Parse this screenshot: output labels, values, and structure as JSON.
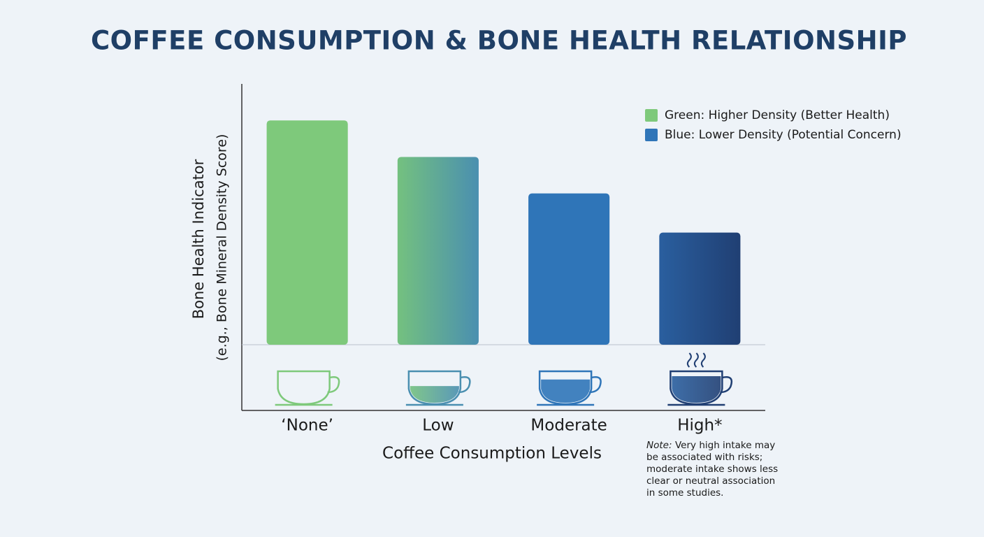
{
  "chart_data": {
    "type": "bar",
    "title": "COFFEE CONSUMPTION & BONE HEALTH RELATIONSHIP",
    "x_label": "Coffee Consumption Levels",
    "y_label": [
      "Bone Health Indicator",
      "(e.g., Bone Mineral Density Score)"
    ],
    "categories": [
      "‘None’",
      "Low",
      "Moderate",
      "High*"
    ],
    "values": [
      86,
      72,
      58,
      43
    ],
    "ylim": [
      0,
      100
    ],
    "colors": [
      "#7ec97b",
      [
        "#74c17f",
        "#4a8fb0"
      ],
      "#2f75b8",
      [
        "#2a5f9f",
        "#203f73"
      ]
    ],
    "legend": [
      {
        "label": "Green: Higher Density (Better Health)",
        "color": "#7ec97b"
      },
      {
        "label": "Blue: Lower Density (Potential Concern)",
        "color": "#2f75b8"
      }
    ],
    "note_label": "Note:",
    "note_lines": [
      "Very high intake may",
      "be associated with risks;",
      "moderate intake shows less",
      "clear or neutral association",
      "in some studies."
    ]
  }
}
